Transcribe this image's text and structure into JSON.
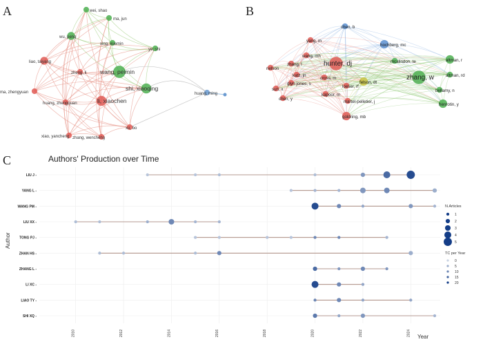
{
  "panels": {
    "a_label": "A",
    "b_label": "B",
    "c_label": "C"
  },
  "network_a": {
    "edge_color_green": "#8dc06a",
    "edge_color_red": "#e08070",
    "node_color_green": "#4caf50",
    "node_color_red": "#e05555",
    "node_color_blue": "#6699cc",
    "nodes": [
      {
        "label": "wei, shao",
        "cluster": "green",
        "w": 1
      },
      {
        "label": "ma, jun",
        "cluster": "green",
        "w": 1
      },
      {
        "label": "wu, peng",
        "cluster": "green",
        "w": 2
      },
      {
        "label": "xing, xuemin",
        "cluster": "green",
        "w": 1
      },
      {
        "label": "ye, shi",
        "cluster": "green",
        "w": 1
      },
      {
        "label": "liao, taiyang",
        "cluster": "red",
        "w": 2
      },
      {
        "label": "zheng, li",
        "cluster": "red",
        "w": 1
      },
      {
        "label": "wang, peimin",
        "cluster": "green",
        "w": 4
      },
      {
        "label": "shi, xiaoqing",
        "cluster": "green",
        "w": 3
      },
      {
        "label": "ma, zhengyuan",
        "cluster": "red",
        "w": 1
      },
      {
        "label": "huang, zhengquan",
        "cluster": "red",
        "w": 1
      },
      {
        "label": "li, xiaochen",
        "cluster": "red",
        "w": 3
      },
      {
        "label": "xu, bo",
        "cluster": "red",
        "w": 1
      },
      {
        "label": "zhang, wencheng",
        "cluster": "red",
        "w": 1
      },
      {
        "label": "xiao, yancheng",
        "cluster": "red",
        "w": 1
      },
      {
        "label": "huang, ming",
        "cluster": "blue",
        "w": 1
      }
    ]
  },
  "network_b": {
    "nodes": [
      {
        "label": "chen, b",
        "cluster": "blue",
        "w": 1
      },
      {
        "label": "yang, m",
        "cluster": "red",
        "w": 1
      },
      {
        "label": "hochberg, mc",
        "cluster": "blue",
        "w": 2
      },
      {
        "label": "hunter, dj",
        "cluster": "red",
        "w": 4
      },
      {
        "label": "mcalindon, te",
        "cluster": "green",
        "w": 1
      },
      {
        "label": "altman, r",
        "cluster": "green",
        "w": 2
      },
      {
        "label": "zhang, w",
        "cluster": "green",
        "w": 4
      },
      {
        "label": "altman, rd",
        "cluster": "green",
        "w": 1
      },
      {
        "label": "bellamy, n",
        "cluster": "green",
        "w": 1
      },
      {
        "label": "henrotin, y",
        "cluster": "green",
        "w": 2
      },
      {
        "label": "wang, mh",
        "cluster": "red",
        "w": 1
      },
      {
        "label": "zhang, l",
        "cluster": "red",
        "w": 1
      },
      {
        "label": "katz, jn",
        "cluster": "red",
        "w": 1
      },
      {
        "label": "glyn-jones, s",
        "cluster": "red",
        "w": 1
      },
      {
        "label": "cross, m",
        "cluster": "red",
        "w": 1
      },
      {
        "label": "loeser, rf",
        "cluster": "red",
        "w": 1
      },
      {
        "label": "felson, dt",
        "cluster": "yellow",
        "w": 2
      },
      {
        "label": "kapoor, m",
        "cluster": "red",
        "w": 1
      },
      {
        "label": "martel-pelletier, j",
        "cluster": "red",
        "w": 1
      },
      {
        "label": "goldring, mb",
        "cluster": "red",
        "w": 2
      },
      {
        "label": "chen, y",
        "cluster": "red",
        "w": 1
      },
      {
        "label": "sun, x",
        "cluster": "red",
        "w": 1
      },
      {
        "label": "nelson",
        "cluster": "red",
        "w": 1
      }
    ]
  },
  "chart_data": {
    "type": "scatter",
    "title": "Authors' Production over Time",
    "xlabel": "Year",
    "ylabel": "Author",
    "x_ticks": [
      "2010",
      "2012",
      "2014",
      "2016",
      "2018",
      "2020",
      "2022",
      "2024"
    ],
    "xlim": [
      2009,
      2025
    ],
    "authors": [
      "LIU J",
      "YANG L",
      "WANG PM",
      "LIU XX",
      "TONG PJ",
      "ZHAN HS",
      "ZHANG L",
      "LI XC",
      "LIAO TY",
      "SHI XQ"
    ],
    "series": [
      {
        "author": "LIU J",
        "span": [
          2013,
          2024
        ],
        "points": [
          [
            2013,
            1,
            2
          ],
          [
            2015,
            1,
            2
          ],
          [
            2016,
            1,
            3
          ],
          [
            2020,
            1,
            3
          ],
          [
            2022,
            2,
            8
          ],
          [
            2023,
            4,
            14
          ],
          [
            2024,
            5,
            18
          ]
        ]
      },
      {
        "author": "YANG L",
        "span": [
          2019,
          2025
        ],
        "points": [
          [
            2019,
            1,
            2
          ],
          [
            2020,
            1,
            4
          ],
          [
            2021,
            1,
            4
          ],
          [
            2022,
            3,
            8
          ],
          [
            2023,
            3,
            10
          ],
          [
            2025,
            2,
            5
          ]
        ]
      },
      {
        "author": "WANG PM",
        "span": [
          2020,
          2025
        ],
        "points": [
          [
            2020,
            4,
            18
          ],
          [
            2021,
            2,
            10
          ],
          [
            2022,
            1,
            6
          ],
          [
            2024,
            2,
            8
          ],
          [
            2025,
            1,
            4
          ]
        ]
      },
      {
        "author": "LIU XX",
        "span": [
          2010,
          2016
        ],
        "points": [
          [
            2010,
            1,
            3
          ],
          [
            2011,
            1,
            3
          ],
          [
            2013,
            1,
            5
          ],
          [
            2014,
            3,
            10
          ],
          [
            2015,
            1,
            4
          ],
          [
            2016,
            1,
            4
          ]
        ]
      },
      {
        "author": "TONG PJ",
        "span": [
          2015,
          2023
        ],
        "points": [
          [
            2015,
            1,
            2
          ],
          [
            2016,
            1,
            2
          ],
          [
            2018,
            1,
            2
          ],
          [
            2019,
            1,
            2
          ],
          [
            2020,
            1,
            10
          ],
          [
            2021,
            1,
            10
          ],
          [
            2023,
            1,
            4
          ]
        ]
      },
      {
        "author": "ZHAN HS",
        "span": [
          2011,
          2024
        ],
        "points": [
          [
            2011,
            1,
            3
          ],
          [
            2012,
            1,
            3
          ],
          [
            2015,
            1,
            3
          ],
          [
            2016,
            2,
            10
          ],
          [
            2024,
            2,
            5
          ]
        ]
      },
      {
        "author": "ZHANG L",
        "span": [
          2020,
          2023
        ],
        "points": [
          [
            2020,
            2,
            14
          ],
          [
            2021,
            1,
            8
          ],
          [
            2022,
            2,
            10
          ],
          [
            2023,
            1,
            8
          ]
        ]
      },
      {
        "author": "LI XC",
        "span": [
          2020,
          2022
        ],
        "points": [
          [
            2020,
            4,
            18
          ],
          [
            2021,
            2,
            10
          ],
          [
            2022,
            1,
            6
          ]
        ]
      },
      {
        "author": "LIAO TY",
        "span": [
          2020,
          2024
        ],
        "points": [
          [
            2020,
            1,
            10
          ],
          [
            2021,
            2,
            10
          ],
          [
            2022,
            1,
            6
          ],
          [
            2024,
            1,
            6
          ]
        ]
      },
      {
        "author": "SHI XQ",
        "span": [
          2020,
          2025
        ],
        "points": [
          [
            2020,
            2,
            12
          ],
          [
            2021,
            1,
            6
          ],
          [
            2022,
            2,
            8
          ],
          [
            2025,
            1,
            4
          ]
        ]
      }
    ],
    "legend_articles_title": "N.Articles",
    "legend_articles": [
      1,
      2,
      3,
      4,
      5
    ],
    "legend_tc_title": "TC per Year",
    "legend_tc": [
      0,
      5,
      10,
      15,
      20
    ],
    "line_color": "#9e7b6e",
    "dot_color_low": "#c9d3e3",
    "dot_color_high": "#143d87",
    "grid": true
  }
}
